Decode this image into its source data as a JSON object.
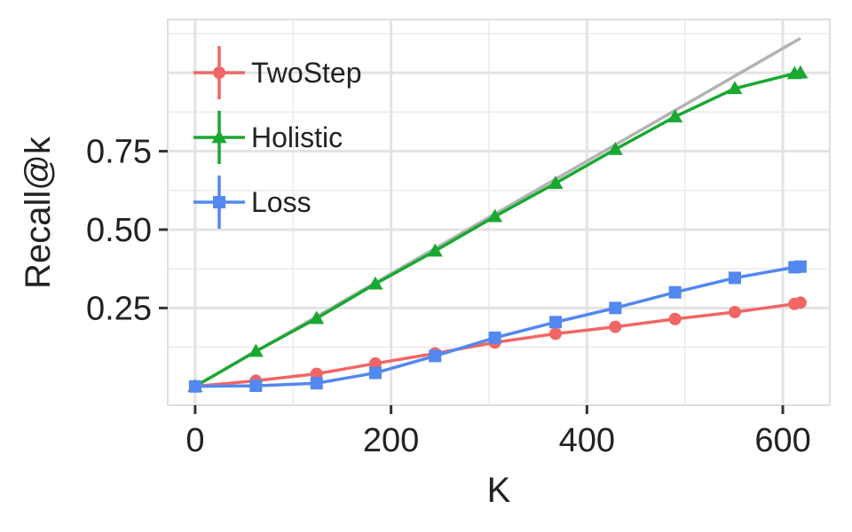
{
  "chart_data": {
    "type": "line",
    "xlabel": "K",
    "ylabel": "Recall@k",
    "xlim": [
      -28,
      648
    ],
    "ylim": [
      -0.06,
      1.17
    ],
    "x_ticks": [
      0,
      200,
      400,
      600
    ],
    "x_tick_labels": [
      "0",
      "200",
      "400",
      "600"
    ],
    "y_ticks": [
      0.25,
      0.5,
      0.75
    ],
    "y_tick_labels": [
      "0.25",
      "0.50",
      "0.75"
    ],
    "grid": true,
    "legend_position": "top-left",
    "reference_line": {
      "from": [
        0,
        0
      ],
      "to": [
        618,
        1.11
      ],
      "color": "#b3b3b3"
    },
    "series": [
      {
        "name": "TwoStep",
        "color": "#f16664",
        "marker": "circle",
        "x": [
          0,
          62,
          124,
          184,
          245,
          306,
          368,
          429,
          490,
          551,
          612,
          618
        ],
        "y": [
          0.0,
          0.018,
          0.04,
          0.073,
          0.105,
          0.14,
          0.168,
          0.19,
          0.215,
          0.237,
          0.263,
          0.267
        ]
      },
      {
        "name": "Holistic",
        "color": "#19a832",
        "marker": "triangle",
        "x": [
          0,
          62,
          124,
          184,
          245,
          306,
          368,
          429,
          490,
          551,
          612,
          618
        ],
        "y": [
          0.0,
          0.112,
          0.217,
          0.327,
          0.432,
          0.542,
          0.648,
          0.756,
          0.86,
          0.95,
          0.998,
          1.0
        ]
      },
      {
        "name": "Loss",
        "color": "#5288ef",
        "marker": "square",
        "x": [
          0,
          62,
          124,
          184,
          245,
          306,
          368,
          429,
          490,
          551,
          612,
          618
        ],
        "y": [
          0.0,
          0.002,
          0.01,
          0.043,
          0.097,
          0.155,
          0.205,
          0.25,
          0.3,
          0.346,
          0.38,
          0.382
        ]
      }
    ]
  }
}
